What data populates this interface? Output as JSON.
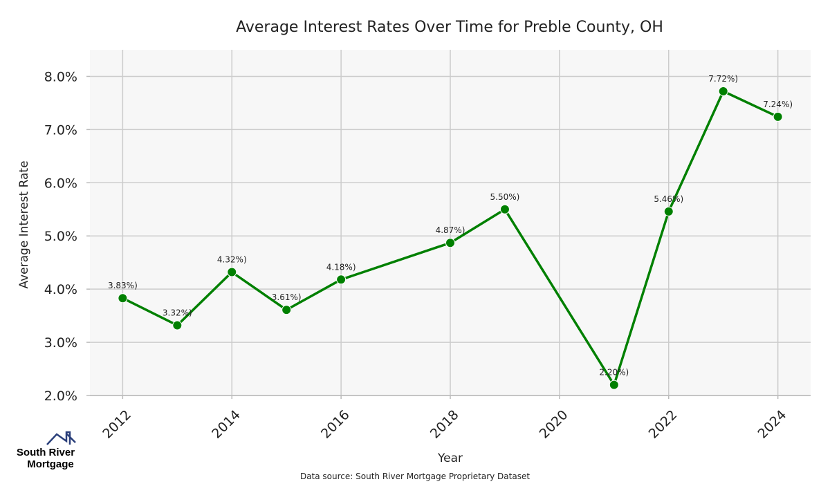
{
  "chart_data": {
    "type": "line",
    "title": "Average Interest Rates Over Time for Preble County, OH",
    "xlabel": "Year",
    "ylabel": "Average Interest Rate",
    "x": [
      2012,
      2013,
      2014,
      2015,
      2016,
      2018,
      2019,
      2021,
      2022,
      2023,
      2024
    ],
    "values": [
      3.83,
      3.32,
      4.32,
      3.61,
      4.18,
      4.87,
      5.5,
      2.2,
      5.46,
      7.72,
      7.24
    ],
    "point_labels": [
      "3.83%)",
      "3.32%)",
      "4.32%)",
      "3.61%)",
      "4.18%)",
      "4.87%)",
      "5.50%)",
      "2.20%)",
      "5.46%)",
      "7.72%)",
      "7.24%)"
    ],
    "xlim": [
      2011.4,
      2024.6
    ],
    "ylim": [
      2.0,
      8.5
    ],
    "x_ticks": [
      2012,
      2014,
      2016,
      2018,
      2020,
      2022,
      2024
    ],
    "x_tick_labels": [
      "2012",
      "2014",
      "2016",
      "2018",
      "2020",
      "2022",
      "2024"
    ],
    "y_ticks": [
      2,
      3,
      4,
      5,
      6,
      7,
      8
    ],
    "y_tick_labels": [
      "2.0%",
      "3.0%",
      "4.0%",
      "5.0%",
      "6.0%",
      "7.0%",
      "8.0%"
    ],
    "grid": true,
    "series_color": "#008000",
    "plot_background": "#f7f7f7",
    "grid_color": "#cccccc"
  },
  "footer": {
    "source": "Data source: South River Mortgage Proprietary Dataset"
  },
  "logo": {
    "line1": "South River",
    "line2": "Mortgage",
    "color": "#2a3f7a"
  }
}
